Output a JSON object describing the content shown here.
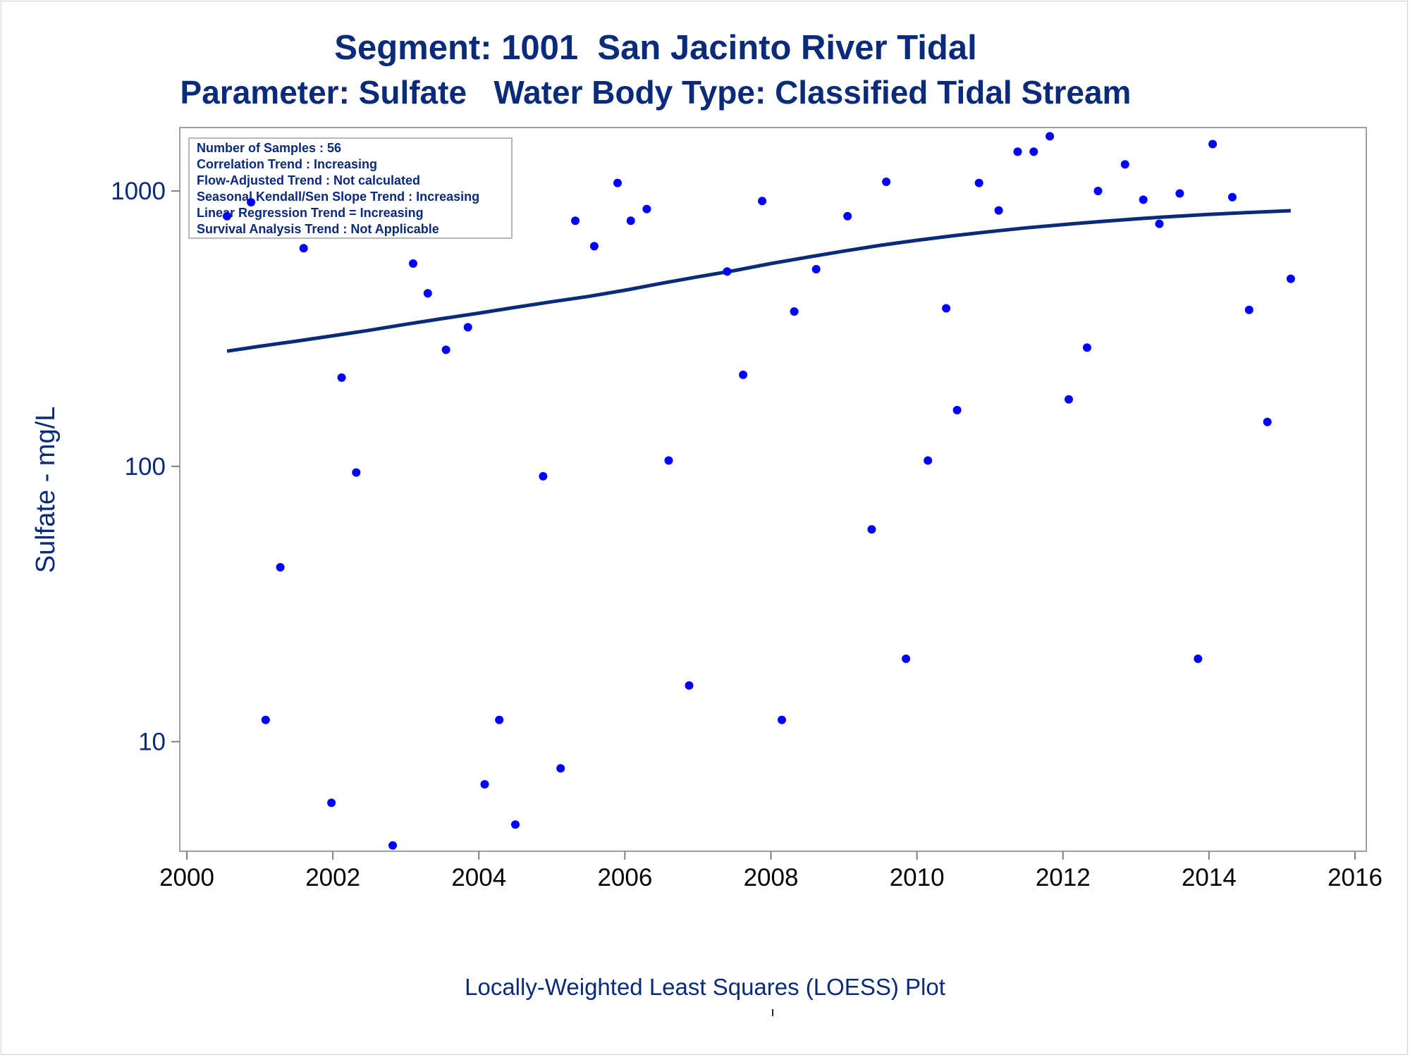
{
  "chart_data": {
    "type": "scatter",
    "title": "Segment: 1001  San Jacinto River Tidal",
    "subtitle": "Parameter: Sulfate   Water Body Type: Classified Tidal Stream",
    "xlabel": "",
    "ylabel": "Sulfate - mg/L",
    "footnote": "Locally-Weighted Least Squares (LOESS) Plot",
    "y_scale": "log",
    "xlim": [
      2000,
      2016
    ],
    "ylim": [
      4,
      1700
    ],
    "x_ticks": [
      "2000",
      "2002",
      "2004",
      "2006",
      "2008",
      "2010",
      "2012",
      "2014",
      "2016"
    ],
    "y_ticks": [
      "10",
      "100",
      "1000"
    ],
    "grid": false,
    "legend": "none",
    "colors": {
      "points": "#0000ff",
      "line": "#0a2a7a",
      "text": "#0a2a7a"
    },
    "info_box": [
      "Number of Samples : 56",
      "Correlation Trend : Increasing",
      "Flow-Adjusted Trend : Not calculated",
      "Seasonal Kendall/Sen Slope Trend : Increasing",
      "Linear Regression Trend = Increasing",
      "Survival Analysis Trend : Not Applicable"
    ],
    "series": [
      {
        "type": "scatter",
        "x": [
          2000.55,
          2000.88,
          2001.08,
          2001.28,
          2001.6,
          2001.98,
          2002.12,
          2002.32,
          2002.82,
          2003.1,
          2003.3,
          2003.55,
          2003.85,
          2004.08,
          2004.28,
          2004.5,
          2004.88,
          2005.12,
          2005.32,
          2005.58,
          2005.9,
          2006.08,
          2006.3,
          2006.6,
          2006.88,
          2007.4,
          2007.62,
          2007.88,
          2008.15,
          2008.32,
          2008.62,
          2009.05,
          2009.38,
          2009.58,
          2009.85,
          2010.15,
          2010.4,
          2010.55,
          2010.85,
          2011.12,
          2011.38,
          2011.6,
          2011.82,
          2012.08,
          2012.33,
          2012.48,
          2012.85,
          2013.1,
          2013.32,
          2013.6,
          2013.85,
          2014.05,
          2014.32,
          2014.55,
          2014.8,
          2015.12
        ],
        "y": [
          810,
          910,
          12,
          43,
          620,
          6,
          210,
          95,
          4.2,
          545,
          425,
          265,
          320,
          7,
          12,
          5,
          92,
          8,
          780,
          630,
          1070,
          780,
          860,
          105,
          16,
          510,
          215,
          920,
          12,
          365,
          520,
          810,
          59,
          1080,
          20,
          105,
          375,
          160,
          1070,
          850,
          1390,
          1390,
          1580,
          175,
          270,
          1000,
          1250,
          930,
          760,
          980,
          20,
          1480,
          950,
          370,
          145,
          480
        ]
      },
      {
        "type": "line",
        "name": "",
        "x": [
          2000.55,
          2001.0,
          2001.5,
          2002.0,
          2002.5,
          2003.0,
          2003.5,
          2004.0,
          2004.5,
          2005.0,
          2005.5,
          2006.0,
          2006.5,
          2007.0,
          2007.5,
          2008.0,
          2008.5,
          2009.0,
          2009.5,
          2010.0,
          2010.5,
          2011.0,
          2011.5,
          2012.0,
          2012.5,
          2013.0,
          2013.5,
          2014.0,
          2014.5,
          2015.12
        ],
        "y": [
          262,
          273,
          285,
          298,
          312,
          328,
          344,
          360,
          378,
          396,
          414,
          436,
          462,
          488,
          514,
          545,
          575,
          605,
          635,
          662,
          688,
          712,
          735,
          755,
          774,
          792,
          808,
          822,
          834,
          848
        ]
      }
    ]
  }
}
